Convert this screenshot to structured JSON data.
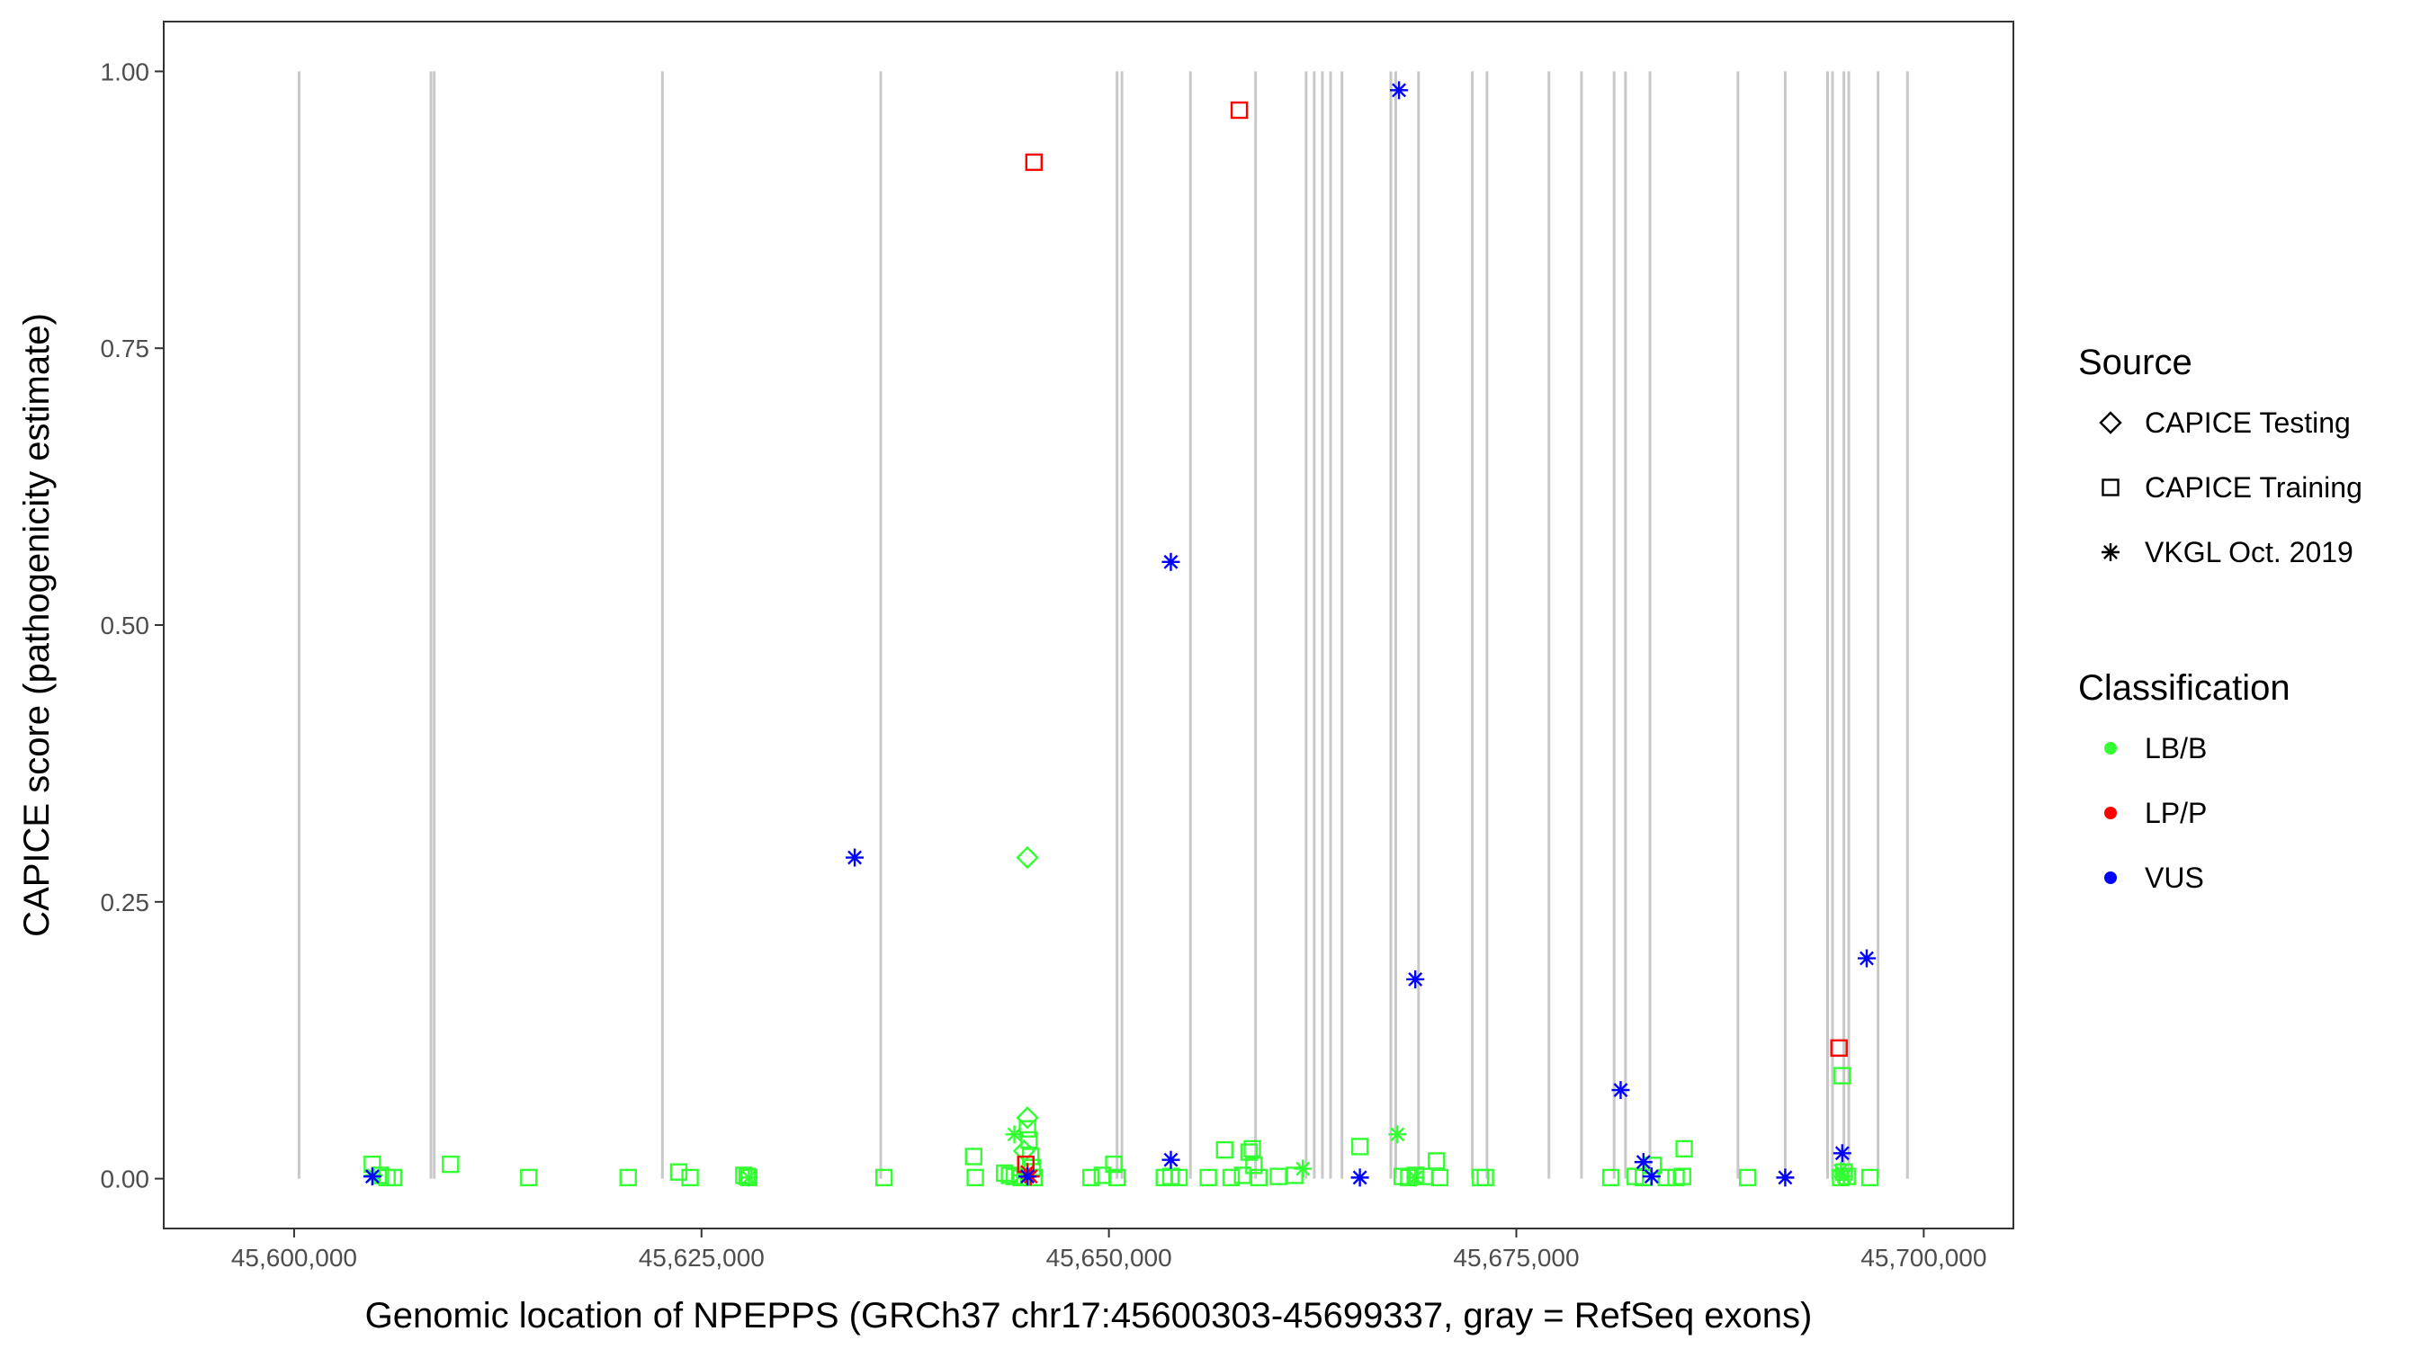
{
  "chart_data": {
    "type": "scatter",
    "xlabel": "Genomic location of NPEPPS (GRCh37 chr17:45600303-45699337, gray = RefSeq exons)",
    "ylabel": "CAPICE score (pathogenicity estimate)",
    "xlim": [
      45592000,
      45705500
    ],
    "ylim": [
      -0.045,
      1.045
    ],
    "x_ticks": [
      {
        "value": 45600000,
        "label": "45,600,000"
      },
      {
        "value": 45625000,
        "label": "45,625,000"
      },
      {
        "value": 45650000,
        "label": "45,650,000"
      },
      {
        "value": 45675000,
        "label": "45,675,000"
      },
      {
        "value": 45700000,
        "label": "45,700,000"
      }
    ],
    "y_ticks": [
      {
        "value": 0,
        "label": "0.00"
      },
      {
        "value": 0.25,
        "label": "0.25"
      },
      {
        "value": 0.5,
        "label": "0.50"
      },
      {
        "value": 0.75,
        "label": "0.75"
      },
      {
        "value": 1,
        "label": "1.00"
      }
    ],
    "grid": false,
    "exon_color": "#c8c8c8",
    "exons": [
      45600303,
      45608400,
      45608600,
      45622600,
      45636000,
      45650500,
      45650800,
      45655000,
      45659000,
      45662100,
      45662600,
      45663100,
      45663600,
      45664300,
      45667300,
      45667600,
      45669000,
      45672300,
      45673200,
      45677000,
      45679000,
      45681000,
      45681700,
      45683200,
      45688600,
      45691500,
      45694100,
      45694400,
      45695100,
      45695400,
      45697200,
      45699000
    ],
    "legends": [
      {
        "title": "Source",
        "position": "right",
        "entries": [
          {
            "label": "CAPICE Testing",
            "shape": "diamond"
          },
          {
            "label": "CAPICE Training",
            "shape": "square"
          },
          {
            "label": "VKGL Oct. 2019",
            "shape": "asterisk"
          }
        ]
      },
      {
        "title": "Classification",
        "position": "right",
        "entries": [
          {
            "label": "LB/B",
            "color": "#33ff33"
          },
          {
            "label": "LP/P",
            "color": "#ff0000"
          },
          {
            "label": "VUS",
            "color": "#0000ff"
          }
        ]
      }
    ],
    "series": [
      {
        "source": "CAPICE Testing",
        "classification": "LB/B",
        "shape": "diamond",
        "color": "#33ff33",
        "points": [
          [
            45645000,
            0.29
          ],
          [
            45645000,
            0.055
          ],
          [
            45644800,
            0.025
          ]
        ]
      },
      {
        "source": "CAPICE Training",
        "classification": "LB/B",
        "shape": "square",
        "color": "#33ff33",
        "points": [
          [
            45604800,
            0.013
          ],
          [
            45605300,
            0.003
          ],
          [
            45605700,
            0.001
          ],
          [
            45606100,
            0.001
          ],
          [
            45609600,
            0.013
          ],
          [
            45614400,
            0.001
          ],
          [
            45620500,
            0.001
          ],
          [
            45623600,
            0.006
          ],
          [
            45624300,
            0.001
          ],
          [
            45627600,
            0.003
          ],
          [
            45627800,
            0.002
          ],
          [
            45627900,
            0.001
          ],
          [
            45636200,
            0.001
          ],
          [
            45641700,
            0.02
          ],
          [
            45641800,
            0.001
          ],
          [
            45643600,
            0.005
          ],
          [
            45643900,
            0.003
          ],
          [
            45644200,
            0.002
          ],
          [
            45644600,
            0.001
          ],
          [
            45645000,
            0.045
          ],
          [
            45645100,
            0.035
          ],
          [
            45645200,
            0.02
          ],
          [
            45645300,
            0.01
          ],
          [
            45645400,
            0.001
          ],
          [
            45648900,
            0.001
          ],
          [
            45649600,
            0.003
          ],
          [
            45650300,
            0.013
          ],
          [
            45650500,
            0.001
          ],
          [
            45653400,
            0.001
          ],
          [
            45653800,
            0.002
          ],
          [
            45654300,
            0.001
          ],
          [
            45656100,
            0.001
          ],
          [
            45657100,
            0.026
          ],
          [
            45657500,
            0.001
          ],
          [
            45658200,
            0.003
          ],
          [
            45658600,
            0.024
          ],
          [
            45658800,
            0.027
          ],
          [
            45658900,
            0.012
          ],
          [
            45659200,
            0.001
          ],
          [
            45660400,
            0.002
          ],
          [
            45661400,
            0.003
          ],
          [
            45665400,
            0.029
          ],
          [
            45668000,
            0.002
          ],
          [
            45668400,
            0.001
          ],
          [
            45668800,
            0.003
          ],
          [
            45669400,
            0.002
          ],
          [
            45670100,
            0.016
          ],
          [
            45670300,
            0.001
          ],
          [
            45672800,
            0.001
          ],
          [
            45673100,
            0.001
          ],
          [
            45680800,
            0.001
          ],
          [
            45682300,
            0.002
          ],
          [
            45682800,
            0.001
          ],
          [
            45683400,
            0.012
          ],
          [
            45684200,
            0.001
          ],
          [
            45684800,
            0.001
          ],
          [
            45685200,
            0.002
          ],
          [
            45685300,
            0.027
          ],
          [
            45689200,
            0.001
          ],
          [
            45694900,
            0.001
          ],
          [
            45695000,
            0.093
          ],
          [
            45695100,
            0.006
          ],
          [
            45695300,
            0.002
          ],
          [
            45696700,
            0.001
          ]
        ]
      },
      {
        "source": "VKGL Oct. 2019",
        "classification": "LB/B",
        "shape": "asterisk",
        "color": "#33ff33",
        "points": [
          [
            45604900,
            0.003
          ],
          [
            45627900,
            0.001
          ],
          [
            45644200,
            0.04
          ],
          [
            45644600,
            0.003
          ],
          [
            45661900,
            0.009
          ],
          [
            45667700,
            0.04
          ],
          [
            45668800,
            0.001
          ],
          [
            45694900,
            0.007
          ],
          [
            45695100,
            0.002
          ]
        ]
      },
      {
        "source": "CAPICE Training",
        "classification": "LP/P",
        "shape": "square",
        "color": "#ff0000",
        "points": [
          [
            45645400,
            0.918
          ],
          [
            45658000,
            0.965
          ],
          [
            45694800,
            0.118
          ],
          [
            45644900,
            0.013
          ]
        ]
      },
      {
        "source": "VKGL Oct. 2019",
        "classification": "LP/P",
        "shape": "asterisk",
        "color": "#ff0000",
        "points": [
          [
            45645000,
            0.006
          ],
          [
            45645200,
            0.002
          ]
        ]
      },
      {
        "source": "VKGL Oct. 2019",
        "classification": "VUS",
        "shape": "asterisk",
        "color": "#0000ff",
        "points": [
          [
            45604800,
            0.002
          ],
          [
            45634400,
            0.29
          ],
          [
            45645000,
            0.002
          ],
          [
            45653800,
            0.557
          ],
          [
            45653800,
            0.017
          ],
          [
            45665400,
            0.001
          ],
          [
            45667800,
            0.983
          ],
          [
            45668800,
            0.18
          ],
          [
            45681400,
            0.08
          ],
          [
            45682800,
            0.015
          ],
          [
            45683300,
            0.002
          ],
          [
            45691500,
            0.001
          ],
          [
            45695000,
            0.023
          ],
          [
            45696500,
            0.199
          ]
        ]
      }
    ]
  }
}
